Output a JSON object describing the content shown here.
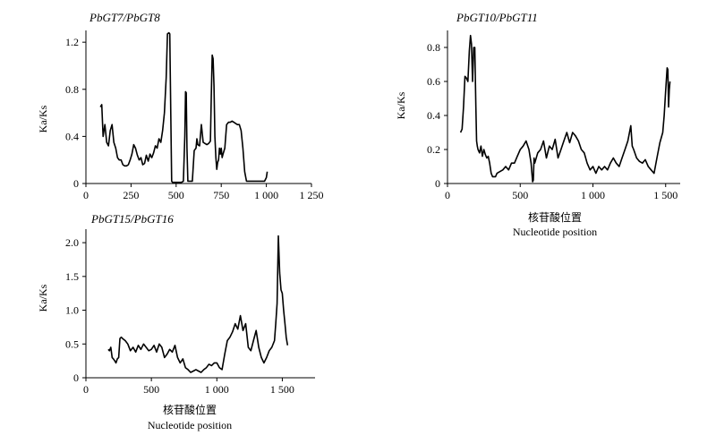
{
  "chart_data": [
    {
      "type": "line",
      "title": "PbGT7/PbGT8",
      "xlabel": "",
      "xlabel_en": "",
      "ylabel": "Ka/Ks",
      "xlim": [
        0,
        1250
      ],
      "ylim": [
        0,
        1.3
      ],
      "xticks": [
        0,
        250,
        500,
        750,
        1000,
        1250
      ],
      "xtick_labels": [
        "0",
        "250",
        "500",
        "750",
        "1 000",
        "1 250"
      ],
      "yticks": [
        0,
        0.4,
        0.8,
        1.2
      ],
      "ytick_labels": [
        "0",
        "0.4",
        "0.8",
        "1.2"
      ],
      "series": [
        {
          "x": [
            80,
            88,
            95,
            105,
            115,
            125,
            135,
            145,
            155,
            165,
            175,
            185,
            195,
            205,
            215,
            225,
            235,
            245,
            255,
            265,
            275,
            285,
            295,
            305,
            315,
            325,
            335,
            345,
            355,
            365,
            375,
            385,
            395,
            405,
            415,
            425,
            435,
            445,
            452,
            460,
            465,
            470,
            475,
            480,
            490,
            500,
            510,
            520,
            530,
            540,
            548,
            552,
            556,
            560,
            565,
            570,
            580,
            590,
            600,
            610,
            615,
            620,
            630,
            640,
            650,
            660,
            670,
            680,
            690,
            695,
            700,
            705,
            710,
            715,
            720,
            725,
            730,
            735,
            740,
            745,
            750,
            755,
            760,
            770,
            780,
            790,
            800,
            810,
            820,
            830,
            840,
            850,
            860,
            870,
            880,
            890,
            900,
            910,
            920,
            930,
            940,
            950,
            960,
            970,
            980,
            990,
            1000,
            1005
          ],
          "y": [
            0.65,
            0.67,
            0.4,
            0.5,
            0.35,
            0.32,
            0.45,
            0.5,
            0.35,
            0.3,
            0.22,
            0.2,
            0.2,
            0.16,
            0.15,
            0.15,
            0.16,
            0.2,
            0.25,
            0.33,
            0.3,
            0.24,
            0.2,
            0.22,
            0.16,
            0.17,
            0.24,
            0.19,
            0.25,
            0.22,
            0.26,
            0.32,
            0.3,
            0.38,
            0.35,
            0.45,
            0.6,
            0.9,
            1.27,
            1.28,
            1.27,
            0.6,
            0.02,
            0.01,
            0.01,
            0.01,
            0.01,
            0.01,
            0.01,
            0.02,
            0.4,
            0.78,
            0.77,
            0.3,
            0.02,
            0.02,
            0.02,
            0.02,
            0.28,
            0.3,
            0.38,
            0.33,
            0.32,
            0.5,
            0.35,
            0.34,
            0.33,
            0.34,
            0.36,
            0.75,
            1.09,
            1.06,
            0.83,
            0.4,
            0.22,
            0.12,
            0.18,
            0.2,
            0.3,
            0.25,
            0.3,
            0.22,
            0.25,
            0.3,
            0.5,
            0.52,
            0.52,
            0.53,
            0.52,
            0.51,
            0.5,
            0.5,
            0.45,
            0.3,
            0.1,
            0.02,
            0.02,
            0.02,
            0.02,
            0.02,
            0.02,
            0.02,
            0.02,
            0.02,
            0.02,
            0.02,
            0.05,
            0.1
          ]
        }
      ]
    },
    {
      "type": "line",
      "title": "PbGT10/PbGT11",
      "xlabel": "核苷酸位置",
      "xlabel_en": "Nucleotide position",
      "ylabel": "Ka/Ks",
      "xlim": [
        0,
        1600
      ],
      "ylim": [
        0,
        0.9
      ],
      "xticks": [
        0,
        500,
        1000,
        1500
      ],
      "xtick_labels": [
        "0",
        "500",
        "1 000",
        "1 500"
      ],
      "yticks": [
        0,
        0.2,
        0.4,
        0.6,
        0.8
      ],
      "ytick_labels": [
        "0",
        "0.2",
        "0.4",
        "0.6",
        "0.8"
      ],
      "series": [
        {
          "x": [
            90,
            100,
            110,
            120,
            130,
            140,
            150,
            158,
            165,
            172,
            180,
            188,
            195,
            200,
            205,
            210,
            220,
            230,
            240,
            250,
            260,
            270,
            280,
            290,
            300,
            310,
            320,
            330,
            340,
            360,
            380,
            400,
            420,
            440,
            460,
            480,
            500,
            520,
            540,
            560,
            575,
            585,
            590,
            595,
            600,
            620,
            640,
            660,
            680,
            700,
            720,
            740,
            760,
            780,
            800,
            820,
            840,
            860,
            880,
            900,
            920,
            940,
            960,
            980,
            1000,
            1020,
            1040,
            1060,
            1080,
            1100,
            1120,
            1140,
            1160,
            1180,
            1200,
            1220,
            1240,
            1260,
            1270,
            1280,
            1300,
            1320,
            1340,
            1360,
            1380,
            1400,
            1420,
            1440,
            1460,
            1480,
            1490,
            1500,
            1510,
            1515,
            1520,
            1525,
            1530
          ],
          "y": [
            0.3,
            0.32,
            0.45,
            0.63,
            0.62,
            0.6,
            0.78,
            0.87,
            0.82,
            0.6,
            0.8,
            0.8,
            0.45,
            0.25,
            0.22,
            0.2,
            0.18,
            0.22,
            0.16,
            0.2,
            0.17,
            0.15,
            0.16,
            0.12,
            0.06,
            0.04,
            0.04,
            0.04,
            0.06,
            0.07,
            0.08,
            0.1,
            0.08,
            0.12,
            0.12,
            0.16,
            0.2,
            0.22,
            0.25,
            0.2,
            0.12,
            0.01,
            0.02,
            0.15,
            0.12,
            0.18,
            0.2,
            0.25,
            0.15,
            0.22,
            0.2,
            0.26,
            0.15,
            0.2,
            0.25,
            0.3,
            0.24,
            0.3,
            0.28,
            0.25,
            0.2,
            0.18,
            0.12,
            0.08,
            0.1,
            0.06,
            0.1,
            0.08,
            0.1,
            0.08,
            0.12,
            0.15,
            0.12,
            0.1,
            0.15,
            0.2,
            0.25,
            0.34,
            0.22,
            0.2,
            0.15,
            0.13,
            0.12,
            0.14,
            0.1,
            0.08,
            0.06,
            0.15,
            0.24,
            0.3,
            0.4,
            0.55,
            0.68,
            0.67,
            0.45,
            0.55,
            0.6
          ]
        }
      ]
    },
    {
      "type": "line",
      "title": "PbGT15/PbGT16",
      "xlabel": "核苷酸位置",
      "xlabel_en": "Nucleotide position",
      "ylabel": "Ka/Ks",
      "xlim": [
        0,
        1750
      ],
      "ylim": [
        0,
        2.2
      ],
      "xticks": [
        0,
        500,
        1000,
        1500
      ],
      "xtick_labels": [
        "0",
        "500",
        "1 000",
        "1 500"
      ],
      "yticks": [
        0,
        0.5,
        1.0,
        1.5,
        2.0
      ],
      "ytick_labels": [
        "0",
        "0.5",
        "1.0",
        "1.5",
        "2.0"
      ],
      "series": [
        {
          "x": [
            170,
            180,
            190,
            200,
            210,
            220,
            230,
            240,
            250,
            260,
            270,
            280,
            300,
            320,
            340,
            360,
            380,
            400,
            420,
            440,
            460,
            480,
            500,
            520,
            540,
            560,
            580,
            600,
            620,
            640,
            660,
            680,
            700,
            720,
            740,
            760,
            780,
            800,
            820,
            840,
            860,
            880,
            900,
            920,
            940,
            960,
            980,
            1000,
            1020,
            1040,
            1060,
            1080,
            1100,
            1120,
            1140,
            1160,
            1180,
            1200,
            1220,
            1240,
            1260,
            1280,
            1300,
            1320,
            1340,
            1360,
            1380,
            1400,
            1420,
            1440,
            1450,
            1460,
            1470,
            1480,
            1490,
            1500,
            1510,
            1520,
            1530,
            1540
          ],
          "y": [
            0.42,
            0.4,
            0.45,
            0.3,
            0.28,
            0.25,
            0.22,
            0.28,
            0.3,
            0.58,
            0.6,
            0.58,
            0.55,
            0.5,
            0.4,
            0.45,
            0.38,
            0.48,
            0.42,
            0.5,
            0.45,
            0.4,
            0.42,
            0.48,
            0.38,
            0.5,
            0.45,
            0.3,
            0.35,
            0.42,
            0.38,
            0.48,
            0.3,
            0.22,
            0.28,
            0.15,
            0.12,
            0.08,
            0.1,
            0.12,
            0.1,
            0.08,
            0.12,
            0.15,
            0.2,
            0.18,
            0.22,
            0.22,
            0.15,
            0.12,
            0.35,
            0.55,
            0.6,
            0.68,
            0.8,
            0.72,
            0.92,
            0.7,
            0.8,
            0.45,
            0.4,
            0.55,
            0.7,
            0.45,
            0.3,
            0.22,
            0.3,
            0.4,
            0.45,
            0.55,
            0.8,
            1.1,
            2.1,
            1.55,
            1.3,
            1.25,
            1.0,
            0.8,
            0.6,
            0.48
          ]
        }
      ]
    }
  ]
}
